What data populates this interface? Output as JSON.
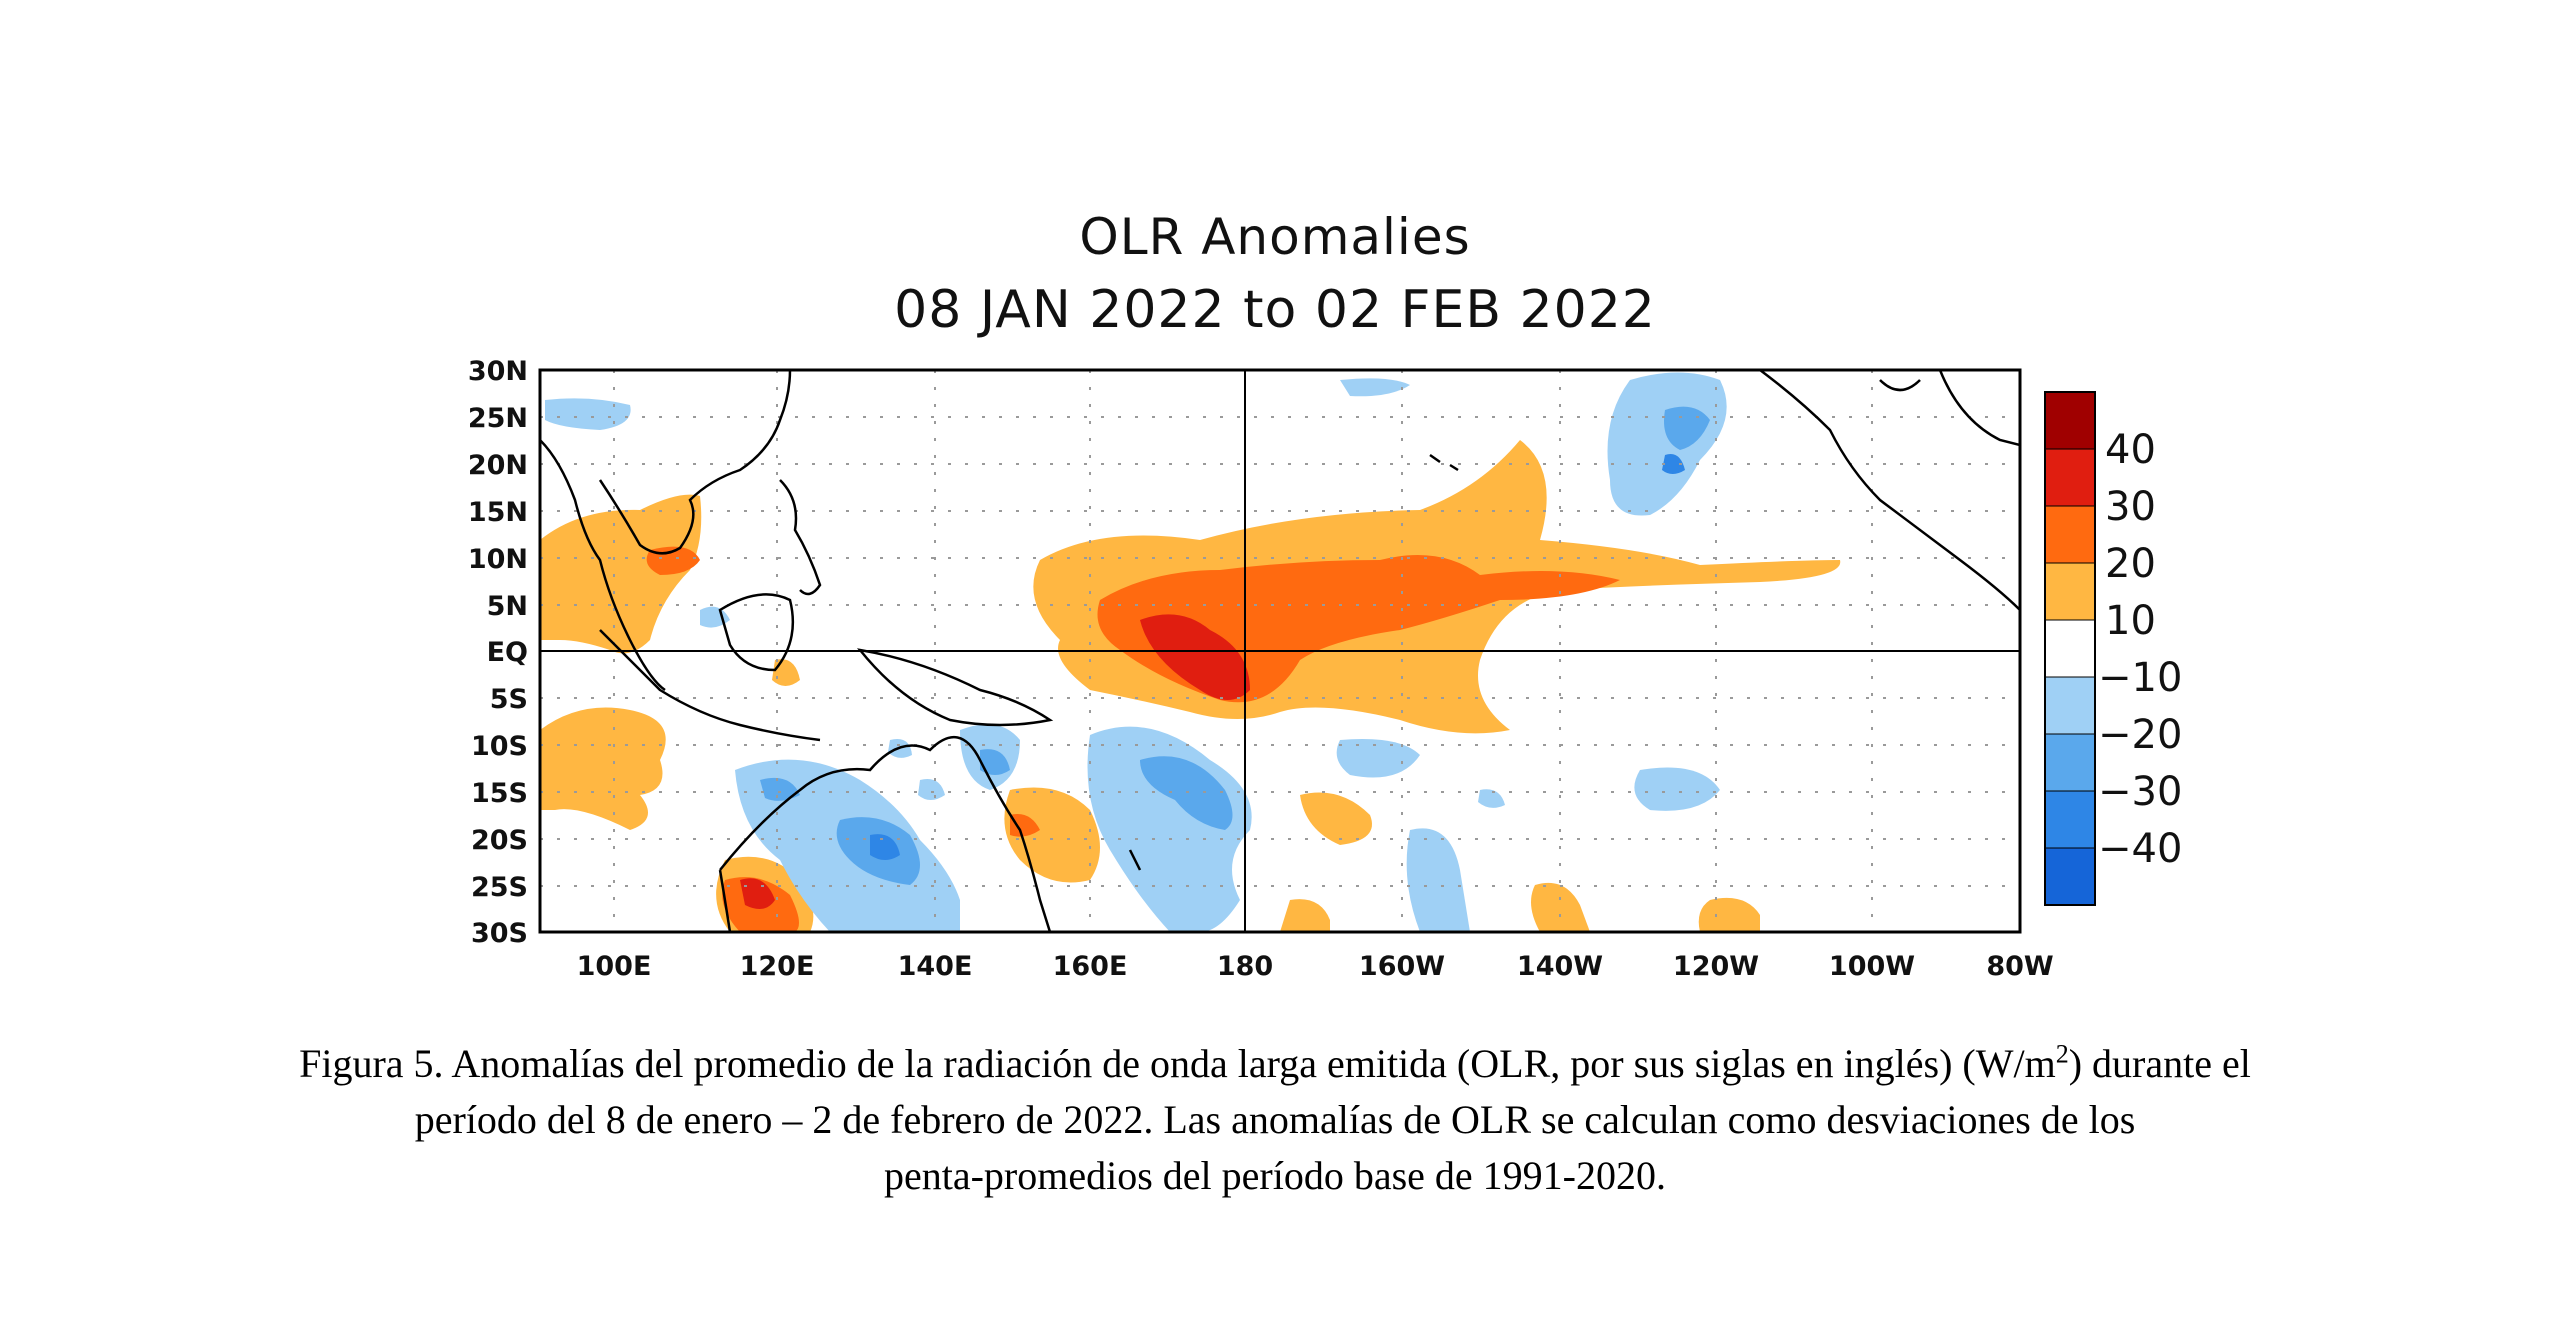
{
  "map": {
    "title": "OLR Anomalies",
    "subtitle": "08 JAN 2022 to 02 FEB 2022",
    "lat_labels": [
      "30N",
      "25N",
      "20N",
      "15N",
      "10N",
      "5N",
      "EQ",
      "5S",
      "10S",
      "15S",
      "20S",
      "25S",
      "30S"
    ],
    "lon_labels": [
      "100E",
      "120E",
      "140E",
      "160E",
      "180",
      "160W",
      "140W",
      "120W",
      "100W",
      "80W"
    ],
    "colorbar": {
      "labels": [
        "40",
        "30",
        "20",
        "10",
        "−10",
        "−20",
        "−30",
        "−40"
      ],
      "colors": [
        "#a00000",
        "#e01e10",
        "#ff6a10",
        "#ffb742",
        "#ffffff",
        "#9fd0f5",
        "#5aa8ec",
        "#2e86e6",
        "#1565d8"
      ]
    },
    "colors": {
      "pos1": "#ffb742",
      "pos2": "#ff6a10",
      "pos3": "#e01e10",
      "neg1": "#9fd0f5",
      "neg2": "#5aa8ec",
      "neg3": "#2e86e6",
      "coast": "#000000"
    }
  },
  "caption": {
    "line1_a": "Figura 5. Anomalías del promedio de la radiación de onda larga emitida (OLR, por sus siglas en inglés) (W/m",
    "line1_sup": "2",
    "line1_b": ") durante el",
    "line2": "período del 8 de enero – 2 de febrero de 2022.  Las anomalías de OLR se calculan como desviaciones de los",
    "line3": "penta-promedios del período base de 1991-2020."
  }
}
